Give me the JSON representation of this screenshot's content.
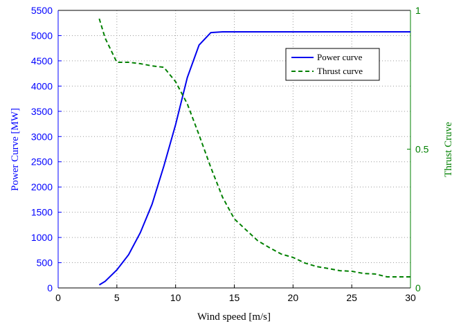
{
  "chart_data": {
    "type": "line",
    "xlabel": "Wind speed [m/s]",
    "ylabel": "Power Curve [MW]",
    "y2label": "Thrust Cruve",
    "xlim": [
      0,
      30
    ],
    "xticks": [
      0,
      5,
      10,
      15,
      20,
      25,
      30
    ],
    "ylim": [
      0,
      5500
    ],
    "yticks": [
      0,
      500,
      1000,
      1500,
      2000,
      2500,
      3000,
      3500,
      4000,
      4500,
      5000,
      5500
    ],
    "y2lim": [
      0,
      1
    ],
    "y2ticks": [
      0,
      0.5,
      1
    ],
    "grid": true,
    "legend": "upper right",
    "ycolor": "#0000ff",
    "y2color": "#008000",
    "series": [
      {
        "name": "Power curve",
        "color": "#0000ee",
        "linestyle": "solid",
        "x": [
          3.5,
          4,
          5,
          6,
          7,
          8,
          9,
          10,
          11,
          12,
          13,
          14,
          15,
          20,
          25,
          30
        ],
        "values": [
          60,
          130,
          357,
          658,
          1097,
          1660,
          2414,
          3237,
          4170,
          4814,
          5060,
          5075,
          5075,
          5075,
          5075,
          5075
        ]
      },
      {
        "name": "Thrust curve",
        "color": "#008000",
        "linestyle": "dashed",
        "axis": "y2",
        "x": [
          3.5,
          4,
          5,
          6,
          7,
          8,
          9,
          10,
          11,
          12,
          13,
          14,
          15,
          16,
          17,
          18,
          19,
          20,
          21,
          22,
          23,
          24,
          25,
          26,
          27,
          28,
          29,
          30
        ],
        "values": [
          0.97,
          0.9,
          0.813,
          0.813,
          0.808,
          0.8,
          0.795,
          0.743,
          0.663,
          0.551,
          0.434,
          0.327,
          0.249,
          0.209,
          0.17,
          0.145,
          0.122,
          0.11,
          0.09,
          0.077,
          0.07,
          0.062,
          0.06,
          0.052,
          0.05,
          0.04,
          0.04,
          0.04
        ]
      }
    ]
  }
}
